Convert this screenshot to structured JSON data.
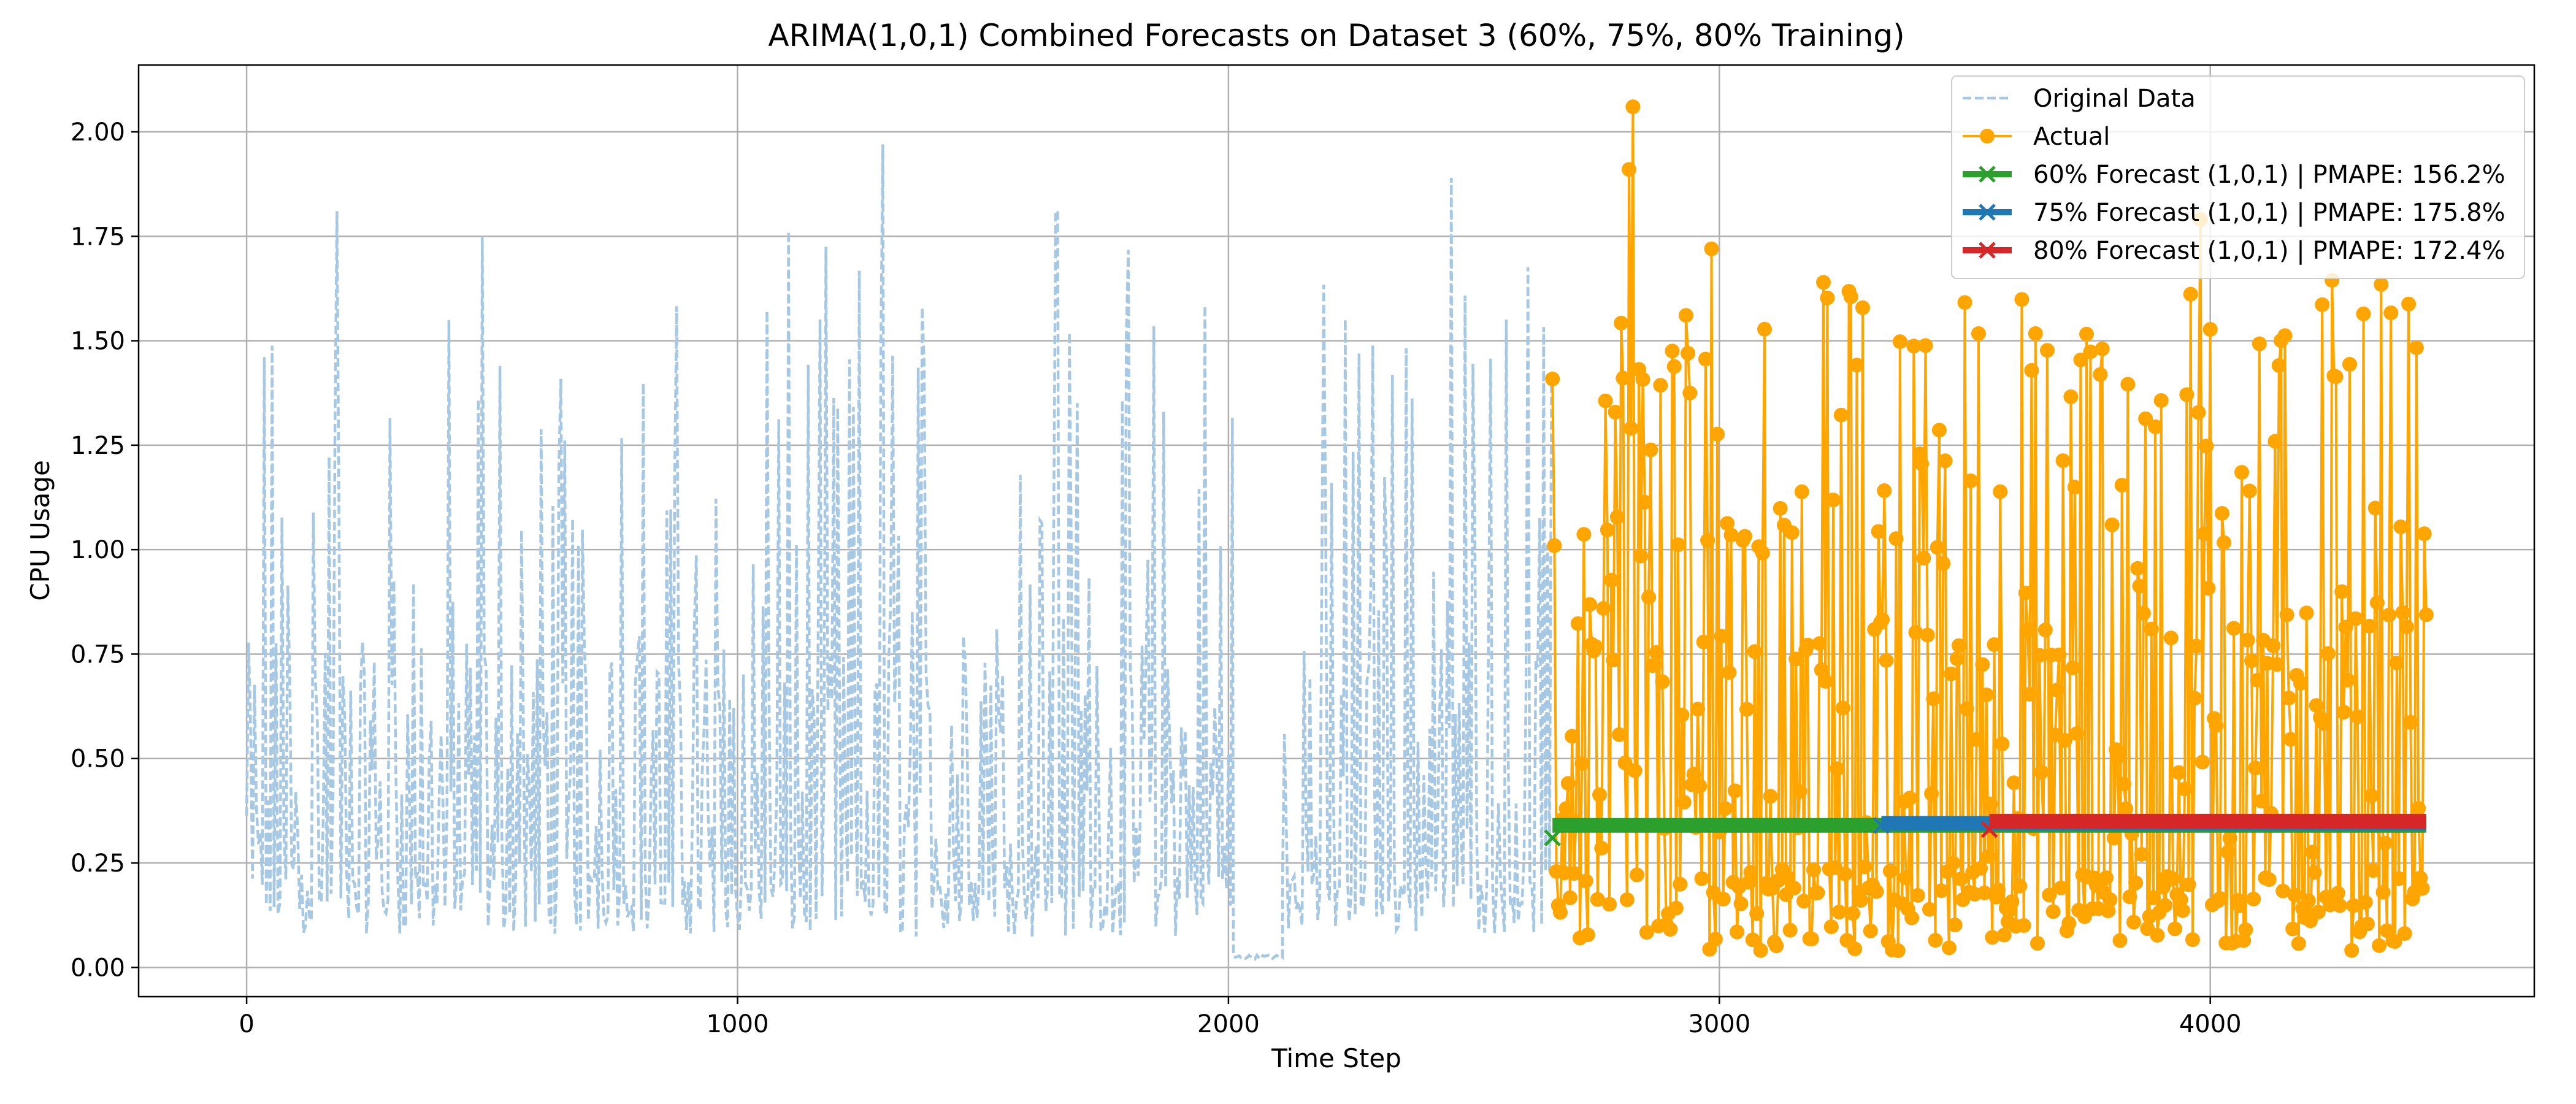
{
  "chart_data": {
    "type": "line",
    "title": "ARIMA(1,0,1) Combined Forecasts on Dataset 3 (60%, 75%, 80% Training)",
    "xlabel": "Time Step",
    "ylabel": "CPU Usage",
    "xlim": [
      -220,
      4660
    ],
    "ylim": [
      -0.07,
      2.16
    ],
    "xticks": [
      0,
      1000,
      2000,
      3000,
      4000
    ],
    "yticks": [
      0.0,
      0.25,
      0.5,
      0.75,
      1.0,
      1.25,
      1.5,
      1.75,
      2.0
    ],
    "xtick_labels": [
      "0",
      "1000",
      "2000",
      "3000",
      "4000"
    ],
    "ytick_labels": [
      "0.00",
      "0.25",
      "0.50",
      "0.75",
      "1.00",
      "1.25",
      "1.50",
      "1.75",
      "2.00"
    ],
    "grid": true,
    "legend_position": "top-right",
    "series": [
      {
        "name": "Original Data",
        "color": "#a6c8e2",
        "style": "dashed",
        "x_range": [
          0,
          2660
        ],
        "segments": [
          {
            "x_start": 0,
            "x_end": 980,
            "low": 0.08,
            "high": 1.8
          },
          {
            "x_start": 980,
            "x_end": 2010,
            "low": 0.07,
            "high": 1.97
          },
          {
            "x_start": 2010,
            "x_end": 2110,
            "low": 0.02,
            "high": 0.03
          },
          {
            "x_start": 2110,
            "x_end": 2660,
            "low": 0.08,
            "high": 1.89
          }
        ],
        "peaks": [
          {
            "x": 185,
            "y": 1.81
          },
          {
            "x": 480,
            "y": 1.75
          },
          {
            "x": 1295,
            "y": 1.97
          },
          {
            "x": 1650,
            "y": 1.81
          },
          {
            "x": 2455,
            "y": 1.89
          }
        ]
      },
      {
        "name": "Actual",
        "color": "#ffa500",
        "style": "solid-marker",
        "x_range": [
          2660,
          4440
        ],
        "low": 0.04,
        "high": 2.06,
        "peaks": [
          {
            "x": 2825,
            "y": 2.06
          },
          {
            "x": 2815,
            "y": 1.91
          },
          {
            "x": 2985,
            "y": 1.72
          },
          {
            "x": 3980,
            "y": 1.79
          }
        ]
      },
      {
        "name": "60% Forecast (1,0,1) | PMAPE: 156.2%",
        "color": "#2ca02c",
        "x_range": [
          2660,
          4440
        ],
        "values": [
          0.34,
          0.34
        ],
        "first_point": 0.31
      },
      {
        "name": "75% Forecast (1,0,1) | PMAPE: 175.8%",
        "color": "#1f77b4",
        "x_range": [
          3330,
          4440
        ],
        "values": [
          0.345,
          0.345
        ],
        "first_point": 0.34
      },
      {
        "name": "80% Forecast (1,0,1) | PMAPE: 172.4%",
        "color": "#d62728",
        "x_range": [
          3550,
          4440
        ],
        "values": [
          0.35,
          0.35
        ],
        "first_point": 0.33
      }
    ]
  }
}
